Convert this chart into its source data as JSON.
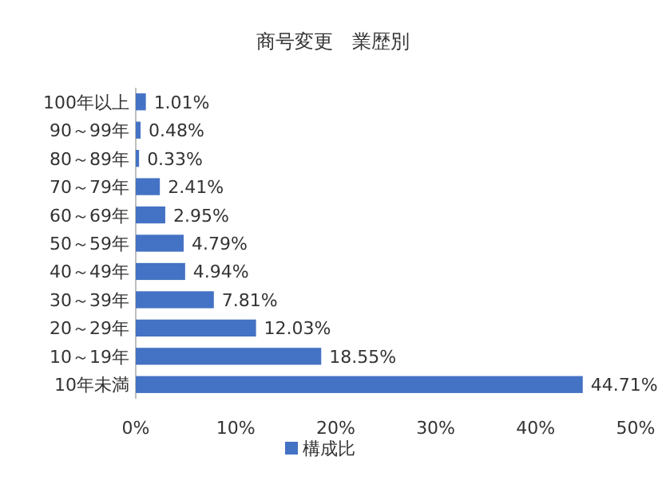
{
  "chart_data": {
    "type": "bar",
    "orientation": "horizontal",
    "title": "商号変更　業歴別",
    "categories": [
      "100年以上",
      "90～99年",
      "80～89年",
      "70～79年",
      "60～69年",
      "50～59年",
      "40～49年",
      "30～39年",
      "20～29年",
      "10～19年",
      "10年未満"
    ],
    "series": [
      {
        "name": "構成比",
        "color": "#4472c4",
        "values": [
          1.01,
          0.48,
          0.33,
          2.41,
          2.95,
          4.79,
          4.94,
          7.81,
          12.03,
          18.55,
          44.71
        ],
        "value_labels": [
          "1.01%",
          "0.48%",
          "0.33%",
          "2.41%",
          "2.95%",
          "4.79%",
          "4.94%",
          "7.81%",
          "12.03%",
          "18.55%",
          "44.71%"
        ]
      }
    ],
    "xlim": [
      0,
      50
    ],
    "xticks": [
      {
        "value": 0,
        "label": "0%"
      },
      {
        "value": 10,
        "label": "10%"
      },
      {
        "value": 20,
        "label": "20%"
      },
      {
        "value": 30,
        "label": "30%"
      },
      {
        "value": 40,
        "label": "40%"
      },
      {
        "value": 50,
        "label": "50%"
      }
    ],
    "grid": false,
    "legend": "bottom"
  }
}
